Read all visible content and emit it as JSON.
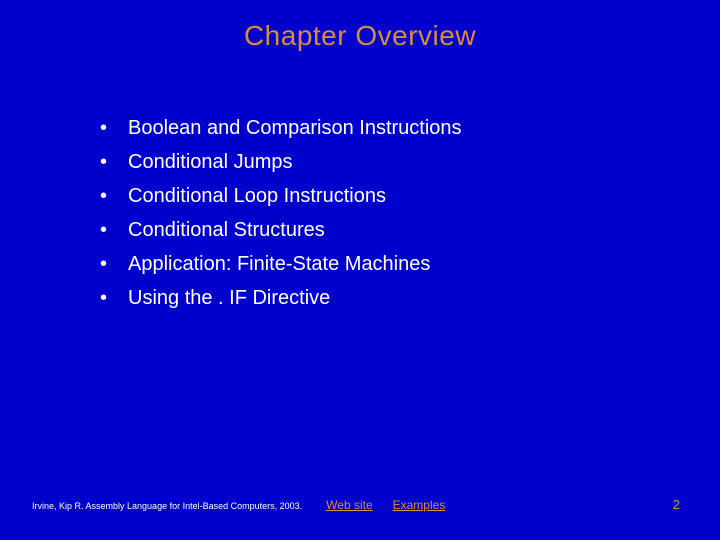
{
  "colors": {
    "background": "#0000cc",
    "accent": "#d98c3a",
    "text": "#ffffff"
  },
  "title": "Chapter Overview",
  "title_fontsize": 28,
  "bullet_fontsize": 20,
  "bullets": [
    "Boolean and Comparison Instructions",
    "Conditional Jumps",
    "Conditional Loop Instructions",
    "Conditional Structures",
    "Application: Finite-State Machines",
    "Using the . IF Directive"
  ],
  "footer": {
    "citation": "Irvine, Kip R. Assembly Language for Intel-Based Computers, 2003.",
    "links": [
      "Web site",
      "Examples"
    ],
    "page_number": "2"
  }
}
